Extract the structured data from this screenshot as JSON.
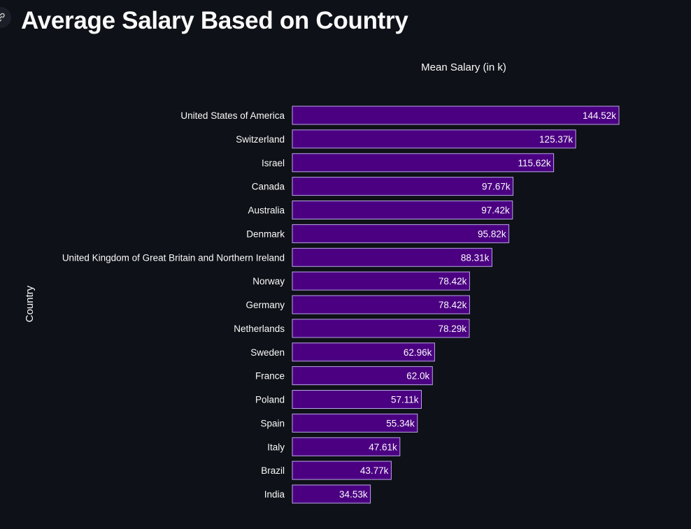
{
  "page": {
    "title": "Average Salary Based on Country"
  },
  "colors": {
    "background": "#0e1117",
    "bar_fill": "#4b0082",
    "bar_stroke": "#b9a7e6",
    "text": "#fafafa"
  },
  "icons": {
    "anchor": "link-icon"
  },
  "chart_data": {
    "type": "bar",
    "orientation": "horizontal",
    "xlabel": "Mean Salary (in k)",
    "ylabel": "Country",
    "grid": false,
    "xlim": [
      0,
      144.52
    ],
    "categories": [
      "United States of America",
      "Switzerland",
      "Israel",
      "Canada",
      "Australia",
      "Denmark",
      "United Kingdom of Great Britain and Northern Ireland",
      "Norway",
      "Germany",
      "Netherlands",
      "Sweden",
      "France",
      "Poland",
      "Spain",
      "Italy",
      "Brazil",
      "India"
    ],
    "values": [
      144.52,
      125.37,
      115.62,
      97.67,
      97.42,
      95.82,
      88.31,
      78.42,
      78.42,
      78.29,
      62.96,
      62.0,
      57.11,
      55.34,
      47.61,
      43.77,
      34.53
    ],
    "value_labels": [
      "144.52k",
      "125.37k",
      "115.62k",
      "97.67k",
      "97.42k",
      "95.82k",
      "88.31k",
      "78.42k",
      "78.42k",
      "78.29k",
      "62.96k",
      "62.0k",
      "57.11k",
      "55.34k",
      "47.61k",
      "43.77k",
      "34.53k"
    ]
  }
}
